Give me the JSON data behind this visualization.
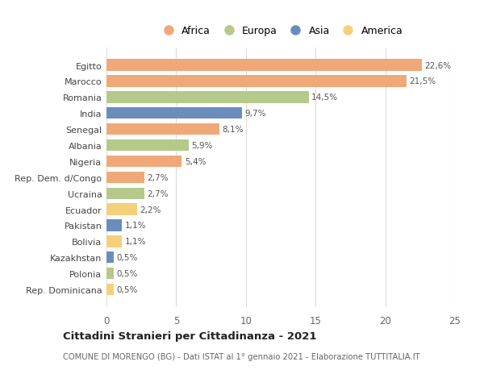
{
  "countries": [
    "Egitto",
    "Marocco",
    "Romania",
    "India",
    "Senegal",
    "Albania",
    "Nigeria",
    "Rep. Dem. d/Congo",
    "Ucraina",
    "Ecuador",
    "Pakistan",
    "Bolivia",
    "Kazakhstan",
    "Polonia",
    "Rep. Dominicana"
  ],
  "values": [
    22.6,
    21.5,
    14.5,
    9.7,
    8.1,
    5.9,
    5.4,
    2.7,
    2.7,
    2.2,
    1.1,
    1.1,
    0.5,
    0.5,
    0.5
  ],
  "labels": [
    "22,6%",
    "21,5%",
    "14,5%",
    "9,7%",
    "8,1%",
    "5,9%",
    "5,4%",
    "2,7%",
    "2,7%",
    "2,2%",
    "1,1%",
    "1,1%",
    "0,5%",
    "0,5%",
    "0,5%"
  ],
  "continents": [
    "Africa",
    "Africa",
    "Europa",
    "Asia",
    "Africa",
    "Europa",
    "Africa",
    "Africa",
    "Europa",
    "America",
    "Asia",
    "America",
    "Asia",
    "Europa",
    "America"
  ],
  "continent_colors": {
    "Africa": "#F0A878",
    "Europa": "#B5C98A",
    "Asia": "#6B8DBE",
    "America": "#F5D07A"
  },
  "legend_order": [
    "Africa",
    "Europa",
    "Asia",
    "America"
  ],
  "title": "Cittadini Stranieri per Cittadinanza - 2021",
  "subtitle": "COMUNE DI MORENGO (BG) - Dati ISTAT al 1° gennaio 2021 - Elaborazione TUTTITALIA.IT",
  "xlim": [
    0,
    25
  ],
  "xticks": [
    0,
    5,
    10,
    15,
    20,
    25
  ],
  "background_color": "#ffffff",
  "grid_color": "#dddddd"
}
